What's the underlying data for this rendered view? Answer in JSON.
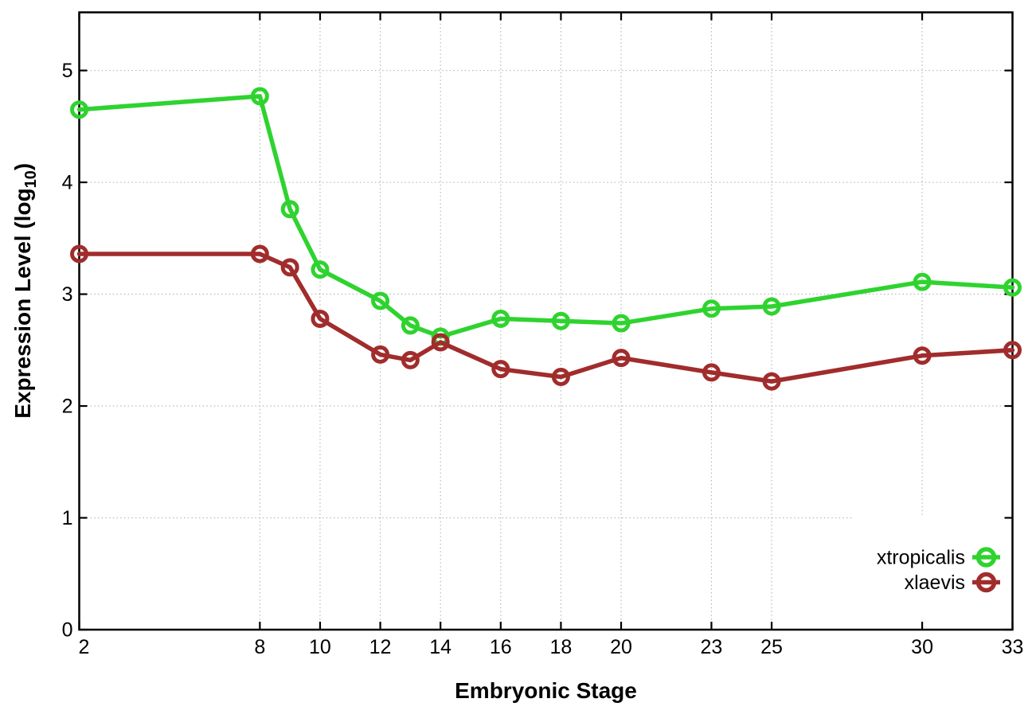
{
  "figure": {
    "background": "#ffffff",
    "border_color": "#000000",
    "grid_color": "#b8b8b8",
    "tick_label_color": "#000000",
    "xlabel": "Embryonic Stage",
    "ylabel": "Expression Level (log10)",
    "ylabel_parts": {
      "pre": "Expression Level (log",
      "sub": "10",
      "post": ")"
    }
  },
  "chart_data": {
    "type": "line",
    "title": "",
    "xlabel": "Embryonic Stage",
    "ylabel": "Expression Level (log10)",
    "x": [
      2,
      8,
      9,
      10,
      12,
      13,
      14,
      16,
      18,
      20,
      23,
      25,
      30,
      33
    ],
    "series": [
      {
        "name": "xtropicalis",
        "color": "#2fd32f",
        "values": [
          4.65,
          4.77,
          3.76,
          3.22,
          2.94,
          2.72,
          2.62,
          2.78,
          2.76,
          2.74,
          2.87,
          2.89,
          3.11,
          3.06
        ]
      },
      {
        "name": "xlaevis",
        "color": "#a12c2c",
        "values": [
          3.36,
          3.36,
          3.24,
          2.78,
          2.46,
          2.41,
          2.57,
          2.33,
          2.26,
          2.43,
          2.3,
          2.22,
          2.45,
          2.5
        ]
      }
    ],
    "xticks": [
      2,
      8,
      10,
      12,
      14,
      16,
      18,
      20,
      23,
      25,
      30,
      33
    ],
    "xtick_labels": [
      "2",
      "8",
      "10",
      "12",
      "14",
      "16",
      "18",
      "20",
      "23",
      "25",
      "30",
      "33"
    ],
    "yticks": [
      0,
      1,
      2,
      3,
      4,
      5
    ],
    "ytick_labels": [
      "0",
      "1",
      "2",
      "3",
      "4",
      "5"
    ],
    "xlim": [
      2,
      33
    ],
    "ylim": [
      0,
      5.52
    ],
    "grid": true,
    "legend_position": "bottom-right",
    "legend_entries": [
      "xtropicalis",
      "xlaevis"
    ]
  }
}
